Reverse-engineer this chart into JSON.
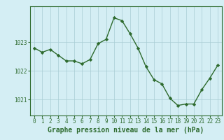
{
  "x": [
    0,
    1,
    2,
    3,
    4,
    5,
    6,
    7,
    8,
    9,
    10,
    11,
    12,
    13,
    14,
    15,
    16,
    17,
    18,
    19,
    20,
    21,
    22,
    23
  ],
  "y": [
    1022.8,
    1022.65,
    1022.75,
    1022.55,
    1022.35,
    1022.35,
    1022.25,
    1022.4,
    1022.95,
    1023.1,
    1023.85,
    1023.75,
    1023.3,
    1022.8,
    1022.15,
    1021.7,
    1021.55,
    1021.05,
    1020.8,
    1020.85,
    1020.85,
    1021.35,
    1021.75,
    1022.2
  ],
  "line_color": "#2d6a2d",
  "marker": "D",
  "marker_size": 2.2,
  "bg_color": "#d4eef4",
  "grid_color": "#a8ccd4",
  "xlabel": "Graphe pression niveau de la mer (hPa)",
  "xlabel_fontsize": 7,
  "yticks": [
    1021,
    1022,
    1023
  ],
  "ylim": [
    1020.45,
    1024.25
  ],
  "xlim": [
    -0.5,
    23.5
  ],
  "xtick_labels": [
    "0",
    "1",
    "2",
    "3",
    "4",
    "5",
    "6",
    "7",
    "8",
    "9",
    "10",
    "11",
    "12",
    "13",
    "14",
    "15",
    "16",
    "17",
    "18",
    "19",
    "20",
    "21",
    "22",
    "23"
  ],
  "tick_fontsize": 5.5,
  "line_width": 1.0
}
